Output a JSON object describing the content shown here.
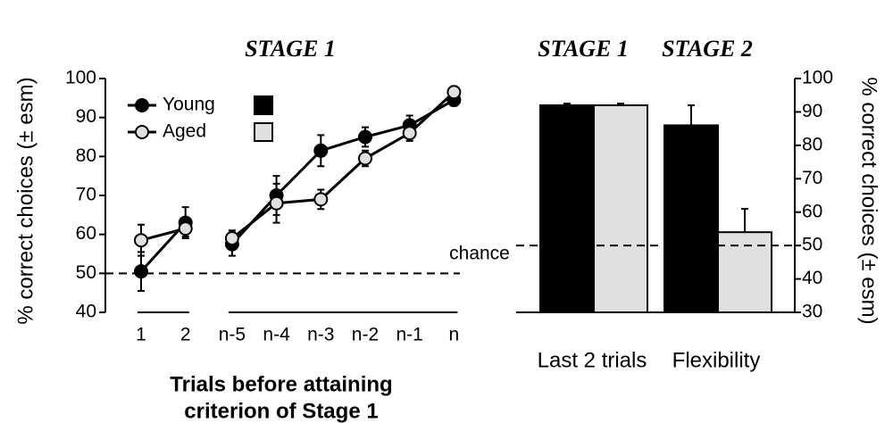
{
  "chart_data": [
    {
      "type": "line",
      "title": "STAGE 1",
      "y_label": "% correct choices (± esm)",
      "x_label": [
        "Trials before attaining",
        "criterion of Stage 1"
      ],
      "categories": [
        "1",
        "2",
        null,
        "n-5",
        "n-4",
        "n-3",
        "n-2",
        "n-1",
        "n"
      ],
      "series": [
        {
          "name": "Young",
          "color": "#000000",
          "values": [
            50.5,
            63,
            null,
            57.5,
            70,
            81.5,
            85,
            88,
            94.5
          ],
          "error": [
            5,
            4,
            null,
            3,
            5,
            4,
            2.5,
            2.5,
            1.5
          ]
        },
        {
          "name": "Aged",
          "color": "#e0e0e0",
          "values": [
            58.5,
            61.5,
            null,
            59,
            68,
            69,
            79.5,
            86,
            96.5
          ],
          "error": [
            4,
            2,
            null,
            2,
            5,
            2.5,
            2,
            2,
            1.5
          ]
        }
      ],
      "ylim": [
        40,
        100
      ],
      "yticks": [
        40,
        50,
        60,
        70,
        80,
        90,
        100
      ],
      "reference_line": 50,
      "legend": "upper-left"
    },
    {
      "type": "bar",
      "category_titles": [
        "STAGE 1",
        "STAGE 2"
      ],
      "y_label": "% correct choices (± esm)",
      "annotation": "chance",
      "categories": [
        "Last 2 trials",
        "Flexibility"
      ],
      "series": [
        {
          "name": "Young",
          "color": "#000000",
          "values": [
            92,
            86
          ],
          "error": [
            0.5,
            6
          ]
        },
        {
          "name": "Aged",
          "color": "#e0e0e0",
          "values": [
            92,
            54
          ],
          "error": [
            0.5,
            7
          ]
        }
      ],
      "ylim": [
        30,
        100
      ],
      "yticks": [
        30,
        40,
        50,
        60,
        70,
        80,
        90,
        100
      ],
      "reference_line": 50,
      "y_axis_side": "right"
    }
  ]
}
